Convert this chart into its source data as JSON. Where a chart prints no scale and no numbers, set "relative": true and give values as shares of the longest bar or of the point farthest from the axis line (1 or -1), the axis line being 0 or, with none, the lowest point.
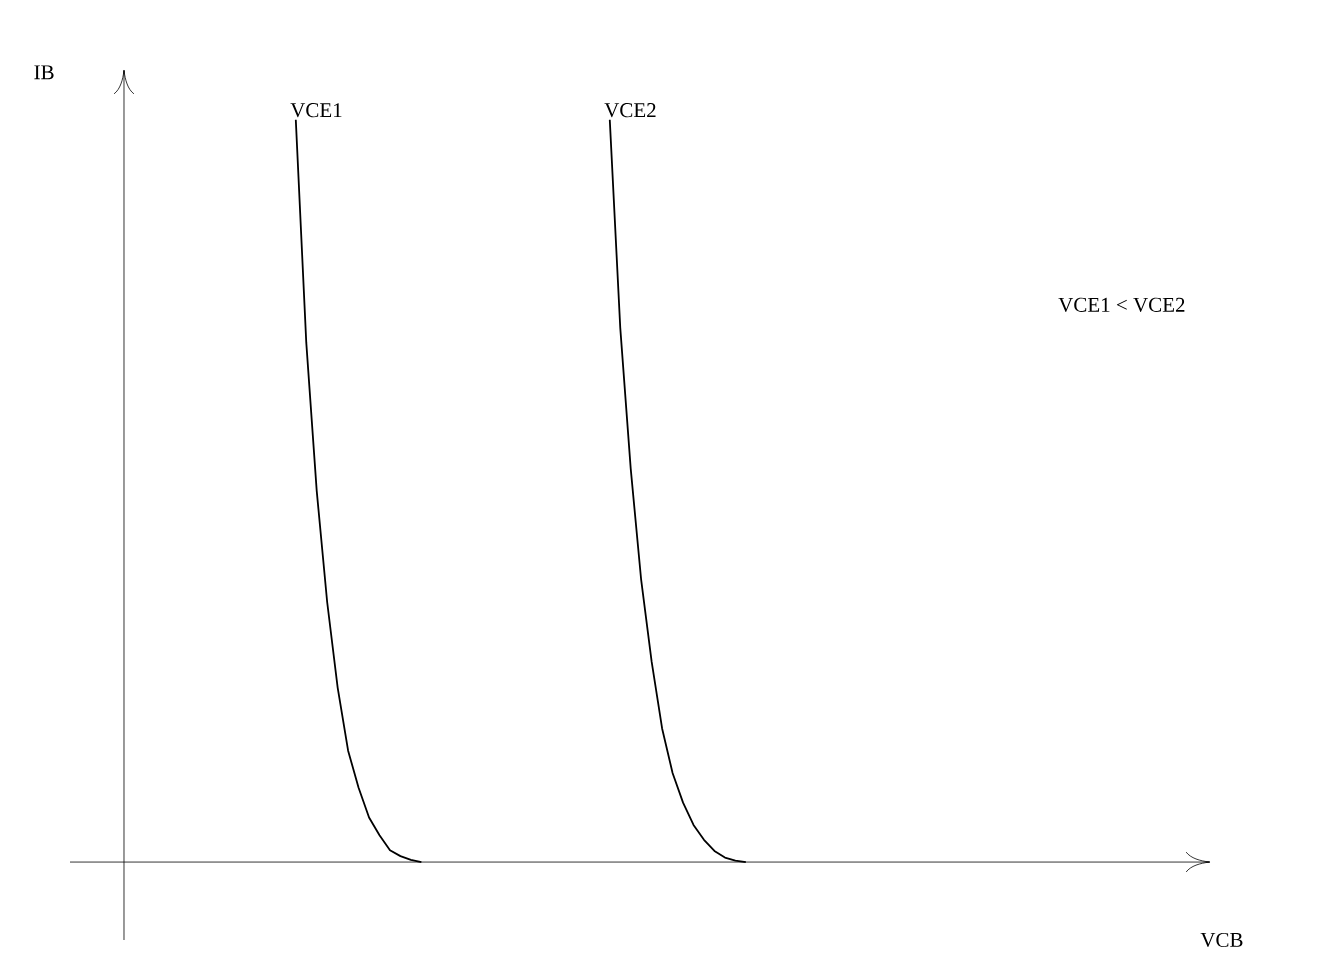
{
  "chart_data": {
    "type": "line",
    "relative": true,
    "xlabel": "VCB",
    "ylabel": "IB",
    "annotations": [
      "VCE1 < VCE2"
    ],
    "categories": [
      null,
      null,
      null,
      null,
      null,
      null,
      null,
      null,
      null,
      null,
      null,
      null,
      null,
      null,
      null,
      null,
      null,
      null,
      null,
      null,
      null,
      null,
      null,
      null,
      null,
      null,
      null,
      null,
      null,
      null,
      null,
      null,
      null,
      null,
      null,
      null,
      null,
      null,
      null,
      null,
      null,
      null,
      null,
      null,
      null,
      null,
      null,
      null,
      null,
      null,
      null,
      null,
      null,
      null,
      null,
      null,
      null,
      null,
      null,
      null,
      null,
      null,
      null,
      null,
      null,
      null,
      null,
      null,
      null,
      null,
      null,
      null,
      null,
      null,
      null,
      null,
      null,
      null,
      null,
      null,
      null,
      null,
      null,
      null,
      null,
      null,
      null,
      null,
      null,
      null,
      null,
      null,
      null,
      null,
      null,
      null,
      null,
      null,
      null,
      null,
      null,
      null,
      null,
      null,
      null,
      null,
      null,
      null,
      null
    ],
    "series": [
      {
        "name": "VCE1",
        "color": "#000000",
        "values": [
          null,
          null,
          null,
          null,
          null,
          null,
          null,
          null,
          null,
          null,
          null,
          null,
          null,
          null,
          null,
          null,
          null,
          null,
          null,
          null,
          null,
          1,
          0.7,
          0.5,
          0.35,
          0.235,
          0.15,
          0.1,
          0.06,
          0.036,
          0.016,
          0.008,
          0.003,
          0,
          null,
          null,
          null,
          null,
          null,
          null,
          null,
          null,
          null,
          null,
          null,
          null,
          null,
          null,
          null,
          null,
          null,
          null,
          null,
          null,
          null,
          null,
          null,
          null,
          null,
          null,
          null,
          null,
          null,
          null,
          null,
          null,
          null,
          null,
          null,
          null,
          null,
          null,
          null,
          null,
          null,
          null,
          null,
          null,
          null,
          null,
          null,
          null,
          null,
          null,
          null,
          null,
          null,
          null,
          null,
          null,
          null,
          null,
          null,
          null,
          null,
          null,
          null,
          null,
          null,
          null,
          null,
          null,
          null,
          null,
          null,
          null,
          null,
          null,
          null
        ]
      },
      {
        "name": "VCE2",
        "color": "#000000",
        "values": [
          null,
          null,
          null,
          null,
          null,
          null,
          null,
          null,
          null,
          null,
          null,
          null,
          null,
          null,
          null,
          null,
          null,
          null,
          null,
          null,
          null,
          null,
          null,
          null,
          null,
          null,
          null,
          null,
          null,
          null,
          null,
          null,
          null,
          null,
          null,
          null,
          null,
          null,
          null,
          null,
          null,
          null,
          null,
          null,
          null,
          null,
          null,
          null,
          null,
          null,
          null,
          1,
          0.72,
          0.53,
          0.38,
          0.27,
          0.18,
          0.12,
          0.08,
          0.05,
          0.03,
          0.015,
          0.006,
          0.002,
          0,
          null,
          null,
          null,
          null,
          null,
          null,
          null,
          null,
          null,
          null,
          null,
          null,
          null,
          null,
          null,
          null,
          null,
          null,
          null,
          null,
          null,
          null,
          null,
          null,
          null,
          null,
          null,
          null,
          null,
          null,
          null,
          null,
          null,
          null,
          null,
          null,
          null,
          null,
          null,
          null,
          null,
          null,
          null,
          null
        ]
      }
    ]
  }
}
